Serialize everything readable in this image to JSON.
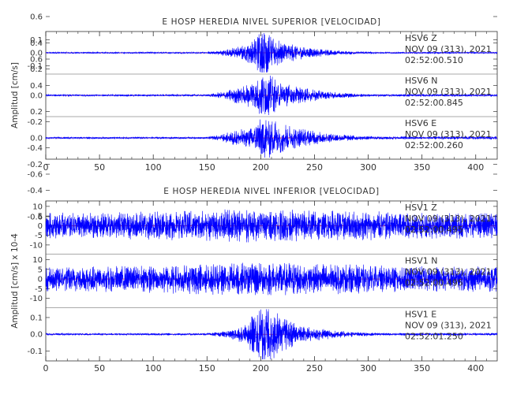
{
  "chart_data": [
    {
      "type": "line",
      "title": "E HOSP HEREDIA NIVEL SUPERIOR [VELOCIDAD]",
      "ylabel": "Amplitud [cm/s]",
      "xlim": [
        0,
        420
      ],
      "x_ticks": [
        "0",
        "50",
        "100",
        "150",
        "200",
        "250",
        "300",
        "350",
        "400"
      ],
      "line_color": "#0000ff",
      "baseline_color": "#ff0000",
      "traces": [
        {
          "station": "HSV6",
          "component": "Z",
          "date": "NOV 09 (313), 2021",
          "time": "02:52:00.510",
          "ylim": [
            -0.15,
            0.15
          ],
          "y_ticks": [
            "0.1",
            "0.0",
            "-0.1"
          ],
          "noise_level": 0.002,
          "envelope_points": [
            [
              150,
              0.004
            ],
            [
              170,
              0.02
            ],
            [
              185,
              0.04
            ],
            [
              195,
              0.08
            ],
            [
              200,
              0.12
            ],
            [
              205,
              0.14
            ],
            [
              210,
              0.1
            ],
            [
              220,
              0.06
            ],
            [
              240,
              0.03
            ],
            [
              270,
              0.012
            ],
            [
              310,
              0.004
            ]
          ]
        },
        {
          "station": "HSV6",
          "component": "N",
          "date": "NOV 09 (313), 2021",
          "time": "02:52:00.845",
          "ylim": [
            -0.15,
            0.15
          ],
          "y_ticks": [
            "0.6",
            "0.4",
            "0.2",
            "0.0",
            "-0.2",
            "-0.4",
            "-0.6"
          ],
          "noise_level": 0.002,
          "envelope_points": [
            [
              150,
              0.005
            ],
            [
              165,
              0.02
            ],
            [
              175,
              0.04
            ],
            [
              185,
              0.05
            ],
            [
              195,
              0.09
            ],
            [
              200,
              0.11
            ],
            [
              205,
              0.12
            ],
            [
              215,
              0.08
            ],
            [
              230,
              0.05
            ],
            [
              260,
              0.02
            ],
            [
              300,
              0.006
            ]
          ]
        },
        {
          "station": "HSV6",
          "component": "E",
          "date": "NOV 09 (313), 2021",
          "time": "02:52:00.260",
          "ylim": [
            -0.15,
            0.15
          ],
          "y_ticks": [
            "0.6",
            "0.4",
            "0.2",
            "0.0",
            "-0.2",
            "-0.4",
            "-0.6"
          ],
          "noise_level": 0.002,
          "envelope_points": [
            [
              150,
              0.005
            ],
            [
              165,
              0.02
            ],
            [
              175,
              0.04
            ],
            [
              190,
              0.05
            ],
            [
              200,
              0.1
            ],
            [
              205,
              0.12
            ],
            [
              215,
              0.09
            ],
            [
              230,
              0.06
            ],
            [
              260,
              0.025
            ],
            [
              300,
              0.008
            ]
          ]
        }
      ]
    },
    {
      "type": "line",
      "title": "E HOSP HEREDIA NIVEL INFERIOR [VELOCIDAD]",
      "ylabel": "Amplitud [cm/s] x 10-4",
      "xlim": [
        0,
        420
      ],
      "x_ticks": [
        "0",
        "50",
        "100",
        "150",
        "200",
        "250",
        "300",
        "350",
        "400"
      ],
      "line_color": "#0000ff",
      "baseline_color": "#ff0000",
      "traces": [
        {
          "station": "HSV1",
          "component": "Z",
          "date": "NOV 09 (313), 2021",
          "time": "02:52:00.495",
          "ylim": [
            -14,
            12
          ],
          "y_ticks": [
            "10",
            "5",
            "0",
            "-5",
            "-10"
          ],
          "noise_level": 4.5,
          "envelope_points": [
            [
              0,
              4
            ],
            [
              200,
              6
            ],
            [
              420,
              4
            ]
          ]
        },
        {
          "station": "HSV1",
          "component": "N",
          "date": "NOV 09 (313), 2021",
          "time": "02:52:00.495",
          "ylim": [
            -14,
            12
          ],
          "y_ticks": [
            "10",
            "5",
            "0",
            "-5",
            "-10"
          ],
          "noise_level": 4.5,
          "envelope_points": [
            [
              0,
              4
            ],
            [
              200,
              6
            ],
            [
              420,
              4
            ]
          ]
        },
        {
          "station": "HSV1",
          "component": "E",
          "date": "NOV 09 (313), 2021",
          "time": "02:52:01.250",
          "ylim": [
            -0.15,
            0.15
          ],
          "y_ticks": [
            "0.1",
            "0.0",
            "-0.1"
          ],
          "noise_level": 0.002,
          "envelope_points": [
            [
              150,
              0.004
            ],
            [
              170,
              0.015
            ],
            [
              185,
              0.04
            ],
            [
              195,
              0.09
            ],
            [
              200,
              0.13
            ],
            [
              205,
              0.14
            ],
            [
              210,
              0.11
            ],
            [
              220,
              0.07
            ],
            [
              240,
              0.035
            ],
            [
              270,
              0.015
            ],
            [
              310,
              0.005
            ]
          ]
        }
      ]
    }
  ]
}
